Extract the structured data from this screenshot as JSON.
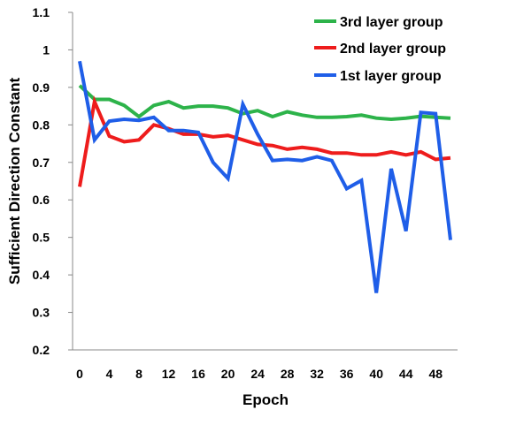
{
  "chart_data": {
    "type": "line",
    "title": "",
    "xlabel": "Epoch",
    "ylabel": "Sufficient Direction Constant",
    "ylim": [
      0.2,
      1.1
    ],
    "xlim": [
      0,
      50
    ],
    "y_ticks": [
      "0.2",
      "0.3",
      "0.4",
      "0.5",
      "0.6",
      "0.7",
      "0.8",
      "0.9",
      "1",
      "1.1"
    ],
    "x_ticks": [
      "0",
      "4",
      "8",
      "12",
      "16",
      "20",
      "24",
      "28",
      "32",
      "36",
      "40",
      "44",
      "48"
    ],
    "grid": false,
    "legend_position": "top-right",
    "series": [
      {
        "name": "3rd layer group",
        "color": "#2db34a",
        "x": [
          0,
          2,
          4,
          6,
          8,
          10,
          12,
          14,
          16,
          18,
          20,
          22,
          24,
          26,
          28,
          30,
          32,
          34,
          36,
          38,
          40,
          42,
          44,
          46,
          48,
          50
        ],
        "values": [
          0.905,
          0.868,
          0.868,
          0.852,
          0.822,
          0.852,
          0.862,
          0.845,
          0.85,
          0.85,
          0.845,
          0.83,
          0.838,
          0.822,
          0.835,
          0.826,
          0.82,
          0.82,
          0.822,
          0.826,
          0.818,
          0.815,
          0.818,
          0.823,
          0.82,
          0.818
        ]
      },
      {
        "name": "2nd layer group",
        "color": "#ee1c1c",
        "x": [
          0,
          2,
          4,
          6,
          8,
          10,
          12,
          14,
          16,
          18,
          20,
          22,
          24,
          26,
          28,
          30,
          32,
          34,
          36,
          38,
          40,
          42,
          44,
          46,
          48,
          50
        ],
        "values": [
          0.635,
          0.862,
          0.77,
          0.755,
          0.76,
          0.8,
          0.79,
          0.775,
          0.775,
          0.768,
          0.772,
          0.76,
          0.748,
          0.745,
          0.735,
          0.74,
          0.735,
          0.725,
          0.725,
          0.72,
          0.72,
          0.728,
          0.72,
          0.728,
          0.708,
          0.712
        ]
      },
      {
        "name": "1st layer group",
        "color": "#1f5ee8",
        "x": [
          0,
          2,
          4,
          6,
          8,
          10,
          12,
          14,
          16,
          18,
          20,
          22,
          24,
          26,
          28,
          30,
          32,
          34,
          36,
          38,
          40,
          42,
          44,
          46,
          48,
          50
        ],
        "values": [
          0.97,
          0.76,
          0.81,
          0.815,
          0.812,
          0.82,
          0.785,
          0.785,
          0.78,
          0.7,
          0.657,
          0.855,
          0.775,
          0.705,
          0.708,
          0.705,
          0.715,
          0.705,
          0.63,
          0.652,
          0.352,
          0.683,
          0.517,
          0.833,
          0.83,
          0.493
        ]
      }
    ]
  }
}
